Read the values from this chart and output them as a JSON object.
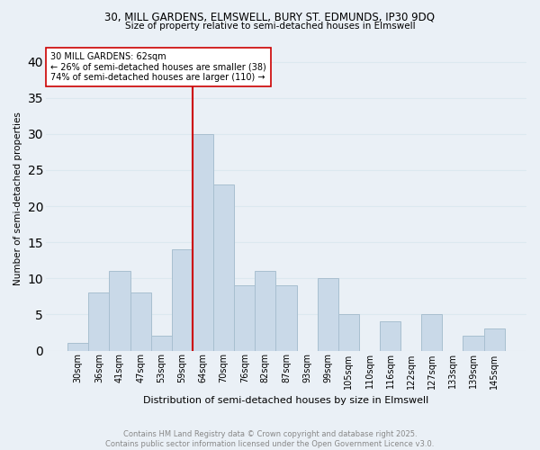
{
  "title1": "30, MILL GARDENS, ELMSWELL, BURY ST. EDMUNDS, IP30 9DQ",
  "title2": "Size of property relative to semi-detached houses in Elmswell",
  "xlabel": "Distribution of semi-detached houses by size in Elmswell",
  "ylabel": "Number of semi-detached properties",
  "categories": [
    "30sqm",
    "36sqm",
    "41sqm",
    "47sqm",
    "53sqm",
    "59sqm",
    "64sqm",
    "70sqm",
    "76sqm",
    "82sqm",
    "87sqm",
    "93sqm",
    "99sqm",
    "105sqm",
    "110sqm",
    "116sqm",
    "122sqm",
    "127sqm",
    "133sqm",
    "139sqm",
    "145sqm"
  ],
  "values": [
    1,
    8,
    11,
    8,
    2,
    14,
    30,
    23,
    9,
    11,
    9,
    0,
    10,
    5,
    0,
    4,
    0,
    5,
    0,
    2,
    3
  ],
  "bar_color": "#c9d9e8",
  "bar_edge_color": "#a8bfd0",
  "grid_color": "#dce8f0",
  "background_color": "#eaf0f6",
  "vline_color": "#cc0000",
  "annotation_text": "30 MILL GARDENS: 62sqm\n← 26% of semi-detached houses are smaller (38)\n74% of semi-detached houses are larger (110) →",
  "annotation_box_color": "#ffffff",
  "annotation_box_edge": "#cc0000",
  "ylim": [
    0,
    42
  ],
  "yticks": [
    0,
    5,
    10,
    15,
    20,
    25,
    30,
    35,
    40
  ],
  "footer_text": "Contains HM Land Registry data © Crown copyright and database right 2025.\nContains public sector information licensed under the Open Government Licence v3.0.",
  "footer_color": "#888888"
}
